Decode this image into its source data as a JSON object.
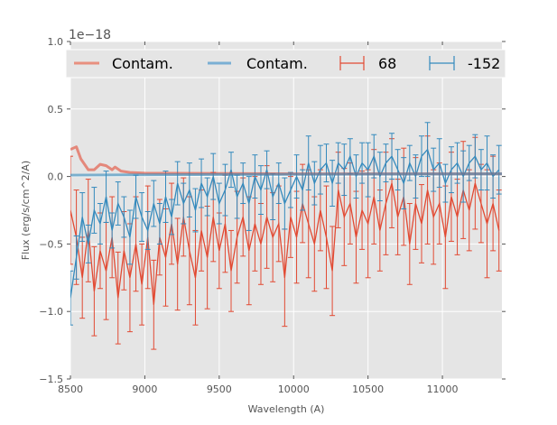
{
  "chart_data": {
    "type": "line",
    "xlabel": "Wavelength (A)",
    "ylabel": "Flux (erg/s/cm^2/A)",
    "offset_text": "1e−18",
    "xlim": [
      8500,
      11400
    ],
    "ylim": [
      -1.5,
      1.0
    ],
    "grid": true,
    "legend_placement": "top, full width",
    "x_ticks": [
      8500,
      9000,
      9500,
      10000,
      10500,
      11000
    ],
    "x_tick_labels": [
      "8500",
      "9000",
      "9500",
      "10000",
      "10500",
      "11000"
    ],
    "y_ticks": [
      -1.5,
      -1.0,
      -0.5,
      0.0,
      0.5,
      1.0
    ],
    "y_tick_labels": [
      "−1.5",
      "−1.0",
      "−0.5",
      "0.0",
      "0.5",
      "1.0"
    ],
    "colors": {
      "red": "#E24A33",
      "blue": "#348ABD",
      "bg": "#E5E5E5"
    },
    "legend": [
      {
        "label": "Contam.",
        "kind": "line",
        "color": "#E8907F"
      },
      {
        "label": "Contam.",
        "kind": "line",
        "color": "#7AAFD4"
      },
      {
        "label": "68",
        "kind": "errorbar",
        "color": "#E24A33"
      },
      {
        "label": "-152",
        "kind": "errorbar",
        "color": "#348ABD"
      }
    ],
    "contam_series": [
      {
        "name": "Contam. (68)",
        "color": "#E24A33",
        "points": [
          [
            8500,
            0.2
          ],
          [
            8540,
            0.22
          ],
          [
            8570,
            0.13
          ],
          [
            8620,
            0.05
          ],
          [
            8660,
            0.05
          ],
          [
            8700,
            0.09
          ],
          [
            8740,
            0.08
          ],
          [
            8780,
            0.05
          ],
          [
            8800,
            0.07
          ],
          [
            8840,
            0.04
          ],
          [
            8900,
            0.03
          ],
          [
            9000,
            0.025
          ],
          [
            10000,
            0.02
          ],
          [
            11400,
            0.02
          ]
        ]
      },
      {
        "name": "Contam. (-152)",
        "color": "#348ABD",
        "points": [
          [
            8500,
            0.01
          ],
          [
            9500,
            0.015
          ],
          [
            11400,
            0.02
          ]
        ]
      }
    ],
    "series": [
      {
        "name": "68",
        "color": "#E24A33",
        "x_start": 8500,
        "x_step": 40,
        "values": [
          -0.25,
          -0.45,
          -0.75,
          -0.4,
          -0.85,
          -0.55,
          -0.7,
          -0.45,
          -0.9,
          -0.55,
          -0.75,
          -0.5,
          -0.8,
          -0.45,
          -0.95,
          -0.45,
          -0.6,
          -0.35,
          -0.65,
          -0.3,
          -0.55,
          -0.75,
          -0.4,
          -0.6,
          -0.3,
          -0.55,
          -0.35,
          -0.7,
          -0.45,
          -0.3,
          -0.55,
          -0.35,
          -0.5,
          -0.3,
          -0.45,
          -0.35,
          -0.75,
          -0.3,
          -0.45,
          -0.2,
          -0.35,
          -0.5,
          -0.25,
          -0.45,
          -0.7,
          -0.1,
          -0.3,
          -0.2,
          -0.45,
          -0.25,
          -0.35,
          -0.15,
          -0.4,
          -0.2,
          -0.05,
          -0.3,
          -0.15,
          -0.5,
          -0.2,
          -0.35,
          -0.1,
          -0.3,
          -0.2,
          -0.45,
          -0.15,
          -0.3,
          -0.1,
          -0.25,
          -0.05,
          -0.2,
          -0.35,
          -0.2,
          -0.4
        ],
        "err_cycle": [
          0.4,
          0.35,
          0.3,
          0.38,
          0.33,
          0.28,
          0.36,
          0.3,
          0.34,
          0.29
        ]
      },
      {
        "name": "-152",
        "color": "#348ABD",
        "x_start": 8500,
        "x_step": 40,
        "values": [
          -0.9,
          -0.6,
          -0.3,
          -0.5,
          -0.25,
          -0.35,
          -0.15,
          -0.4,
          -0.2,
          -0.3,
          -0.45,
          -0.15,
          -0.3,
          -0.4,
          -0.2,
          -0.35,
          -0.15,
          -0.3,
          -0.05,
          -0.2,
          -0.1,
          -0.25,
          -0.05,
          -0.15,
          0.0,
          -0.2,
          -0.1,
          0.05,
          -0.15,
          -0.05,
          -0.2,
          0.0,
          -0.1,
          0.05,
          -0.15,
          -0.05,
          -0.2,
          -0.1,
          0.0,
          -0.1,
          0.1,
          -0.05,
          0.05,
          0.1,
          -0.05,
          0.1,
          0.05,
          0.15,
          0.0,
          0.1,
          0.05,
          0.15,
          0.0,
          0.1,
          0.15,
          0.05,
          -0.05,
          0.1,
          0.0,
          0.15,
          0.2,
          0.05,
          0.1,
          -0.05,
          0.05,
          0.1,
          0.0,
          0.1,
          0.15,
          0.05,
          0.1,
          0.0,
          0.05
        ],
        "err_cycle": [
          0.2,
          0.16,
          0.18,
          0.14,
          0.17,
          0.15,
          0.19,
          0.13,
          0.16,
          0.15
        ]
      }
    ]
  }
}
